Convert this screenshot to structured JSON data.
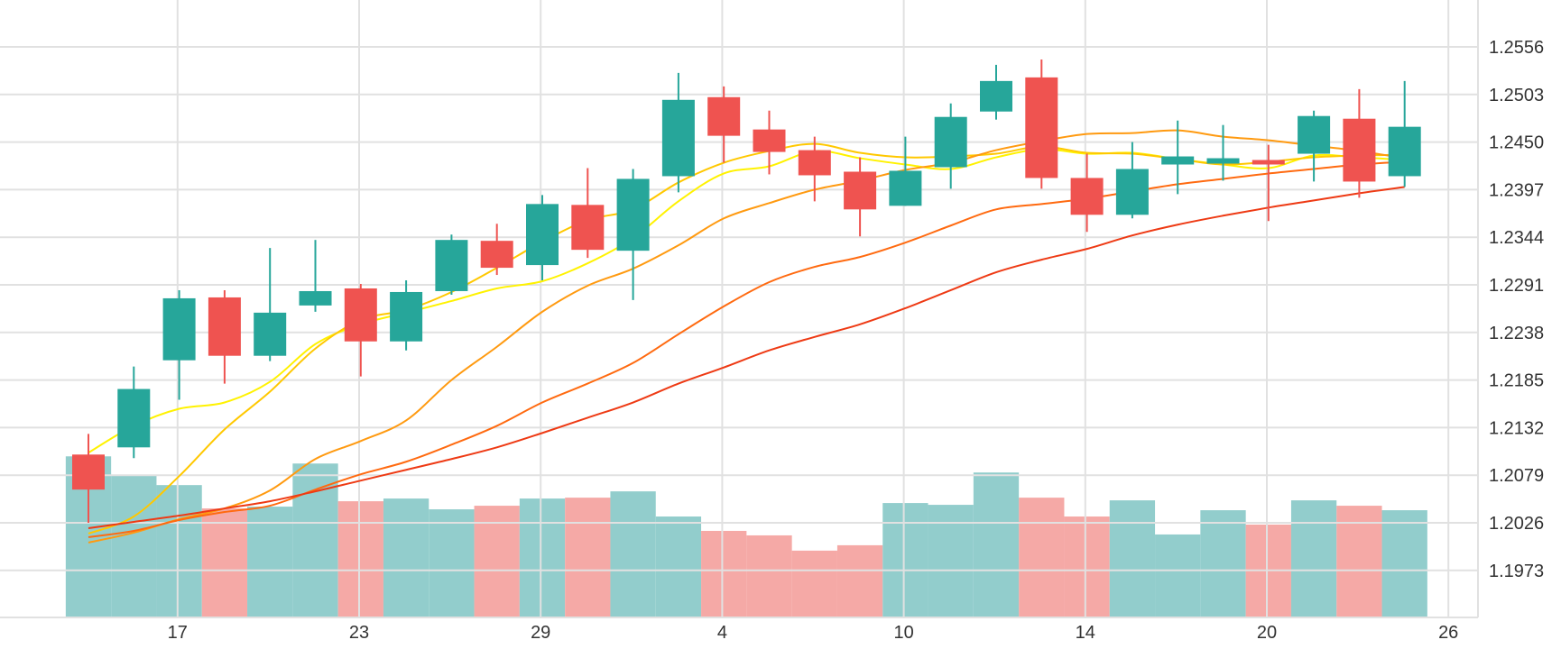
{
  "chart_data": {
    "type": "candlestick",
    "x_tick_labels": [
      {
        "label": "17",
        "index": 1
      },
      {
        "label": "23",
        "index": 5
      },
      {
        "label": "29",
        "index": 9
      },
      {
        "label": "4",
        "index": 13
      },
      {
        "label": "10",
        "index": 17
      },
      {
        "label": "14",
        "index": 21
      },
      {
        "label": "20",
        "index": 25
      },
      {
        "label": "26",
        "index": 29
      }
    ],
    "y_ticks": [
      "1.2556",
      "1.2503",
      "1.2450",
      "1.2397",
      "1.2344",
      "1.2291",
      "1.2238",
      "1.2185",
      "1.2132",
      "1.2079",
      "1.2026",
      "1.1973"
    ],
    "ylim": [
      1.1915,
      1.26
    ],
    "grid": true,
    "colors": {
      "up": "#26a69a",
      "down": "#ef5350",
      "volume_up": "#92cdcc",
      "volume_down": "#f5a9a6",
      "grid": "#e1e1e1",
      "ma_colors": [
        "#fff200",
        "#ffc800",
        "#ff9a10",
        "#ff6a10",
        "#ee3a14"
      ]
    },
    "candles": [
      {
        "o": 1.2102,
        "h": 1.2125,
        "l": 1.2026,
        "c": 1.2063
      },
      {
        "o": 1.211,
        "h": 1.22,
        "l": 1.2098,
        "c": 1.2175
      },
      {
        "o": 1.2207,
        "h": 1.2285,
        "l": 1.2163,
        "c": 1.2276
      },
      {
        "o": 1.2277,
        "h": 1.2285,
        "l": 1.2181,
        "c": 1.2212
      },
      {
        "o": 1.2212,
        "h": 1.2332,
        "l": 1.2206,
        "c": 1.226
      },
      {
        "o": 1.2268,
        "h": 1.2341,
        "l": 1.2261,
        "c": 1.2284
      },
      {
        "o": 1.2287,
        "h": 1.2292,
        "l": 1.2189,
        "c": 1.2228
      },
      {
        "o": 1.2228,
        "h": 1.2296,
        "l": 1.2218,
        "c": 1.2283
      },
      {
        "o": 1.2284,
        "h": 1.2347,
        "l": 1.228,
        "c": 1.2341
      },
      {
        "o": 1.234,
        "h": 1.2359,
        "l": 1.2302,
        "c": 1.231
      },
      {
        "o": 1.2313,
        "h": 1.2391,
        "l": 1.2296,
        "c": 1.2381
      },
      {
        "o": 1.238,
        "h": 1.2421,
        "l": 1.2321,
        "c": 1.233
      },
      {
        "o": 1.2329,
        "h": 1.242,
        "l": 1.2274,
        "c": 1.2409
      },
      {
        "o": 1.2412,
        "h": 1.2527,
        "l": 1.2394,
        "c": 1.2497
      },
      {
        "o": 1.25,
        "h": 1.2512,
        "l": 1.2427,
        "c": 1.2457
      },
      {
        "o": 1.2464,
        "h": 1.2485,
        "l": 1.2414,
        "c": 1.2439
      },
      {
        "o": 1.2441,
        "h": 1.2456,
        "l": 1.2384,
        "c": 1.2413
      },
      {
        "o": 1.2417,
        "h": 1.2433,
        "l": 1.2345,
        "c": 1.2375
      },
      {
        "o": 1.2379,
        "h": 1.2456,
        "l": 1.2379,
        "c": 1.2418
      },
      {
        "o": 1.2422,
        "h": 1.2493,
        "l": 1.2398,
        "c": 1.2478
      },
      {
        "o": 1.2484,
        "h": 1.2536,
        "l": 1.2475,
        "c": 1.2518
      },
      {
        "o": 1.2522,
        "h": 1.2542,
        "l": 1.2398,
        "c": 1.241
      },
      {
        "o": 1.241,
        "h": 1.2437,
        "l": 1.235,
        "c": 1.2369
      },
      {
        "o": 1.2369,
        "h": 1.245,
        "l": 1.2365,
        "c": 1.242
      },
      {
        "o": 1.2425,
        "h": 1.2474,
        "l": 1.2392,
        "c": 1.2434
      },
      {
        "o": 1.2426,
        "h": 1.2469,
        "l": 1.2407,
        "c": 1.2432
      },
      {
        "o": 1.243,
        "h": 1.2447,
        "l": 1.2362,
        "c": 1.2425
      },
      {
        "o": 1.2437,
        "h": 1.2485,
        "l": 1.2406,
        "c": 1.2479
      },
      {
        "o": 1.2476,
        "h": 1.2509,
        "l": 1.2388,
        "c": 1.2406
      },
      {
        "o": 1.2412,
        "h": 1.2518,
        "l": 1.24,
        "c": 1.2467
      }
    ],
    "volumes": [
      {
        "v": 1.21,
        "dir": "up"
      },
      {
        "v": 1.2079,
        "dir": "up"
      },
      {
        "v": 1.2068,
        "dir": "up"
      },
      {
        "v": 1.2042,
        "dir": "down"
      },
      {
        "v": 1.2044,
        "dir": "up"
      },
      {
        "v": 1.2092,
        "dir": "up"
      },
      {
        "v": 1.205,
        "dir": "down"
      },
      {
        "v": 1.2053,
        "dir": "up"
      },
      {
        "v": 1.2041,
        "dir": "up"
      },
      {
        "v": 1.2045,
        "dir": "down"
      },
      {
        "v": 1.2053,
        "dir": "up"
      },
      {
        "v": 1.2054,
        "dir": "down"
      },
      {
        "v": 1.2061,
        "dir": "up"
      },
      {
        "v": 1.2033,
        "dir": "up"
      },
      {
        "v": 1.2017,
        "dir": "down"
      },
      {
        "v": 1.2012,
        "dir": "down"
      },
      {
        "v": 1.1995,
        "dir": "down"
      },
      {
        "v": 1.2001,
        "dir": "down"
      },
      {
        "v": 1.2048,
        "dir": "up"
      },
      {
        "v": 1.2046,
        "dir": "up"
      },
      {
        "v": 1.2082,
        "dir": "up"
      },
      {
        "v": 1.2054,
        "dir": "down"
      },
      {
        "v": 1.2033,
        "dir": "down"
      },
      {
        "v": 1.2051,
        "dir": "up"
      },
      {
        "v": 1.2013,
        "dir": "up"
      },
      {
        "v": 1.204,
        "dir": "up"
      },
      {
        "v": 1.2024,
        "dir": "down"
      },
      {
        "v": 1.2051,
        "dir": "up"
      },
      {
        "v": 1.2045,
        "dir": "down"
      },
      {
        "v": 1.204,
        "dir": "up"
      }
    ],
    "moving_averages": [
      {
        "values": [
          1.2104,
          1.2134,
          1.2153,
          1.216,
          1.2183,
          1.2225,
          1.2247,
          1.226,
          1.2273,
          1.2287,
          1.2295,
          1.2315,
          1.2343,
          1.2384,
          1.2415,
          1.2423,
          1.244,
          1.2432,
          1.2425,
          1.242,
          1.2433,
          1.2442,
          1.2437,
          1.2438,
          1.2431,
          1.2425,
          1.2421,
          1.2435,
          1.2433,
          1.243
        ]
      },
      {
        "values": [
          1.2014,
          1.2033,
          1.2078,
          1.213,
          1.2172,
          1.222,
          1.2252,
          1.2263,
          1.2283,
          1.231,
          1.2339,
          1.2363,
          1.2375,
          1.2405,
          1.2427,
          1.244,
          1.2448,
          1.2438,
          1.2433,
          1.2434,
          1.2437,
          1.2445,
          1.2438,
          1.2437,
          1.2431,
          1.2425,
          1.2428,
          1.2433,
          1.2435,
          1.2436
        ]
      },
      {
        "values": [
          1.2004,
          1.2015,
          1.203,
          1.2042,
          1.2062,
          1.2097,
          1.2117,
          1.214,
          1.2185,
          1.2222,
          1.2261,
          1.229,
          1.2309,
          1.2335,
          1.2365,
          1.2382,
          1.2397,
          1.2407,
          1.2419,
          1.2427,
          1.2441,
          1.2451,
          1.2459,
          1.246,
          1.2463,
          1.2456,
          1.2452,
          1.2446,
          1.244,
          1.2432
        ]
      },
      {
        "values": [
          1.201,
          1.2017,
          1.2029,
          1.2038,
          1.2045,
          1.2063,
          1.208,
          1.2094,
          1.2113,
          1.2134,
          1.216,
          1.2181,
          1.2204,
          1.2236,
          1.2267,
          1.2294,
          1.2311,
          1.2322,
          1.2338,
          1.2357,
          1.2375,
          1.2381,
          1.2387,
          1.2395,
          1.2403,
          1.2409,
          1.2415,
          1.242,
          1.2425,
          1.2428
        ]
      },
      {
        "values": [
          1.202,
          1.2027,
          1.2034,
          1.2042,
          1.205,
          1.2061,
          1.2073,
          1.2085,
          1.2097,
          1.211,
          1.2126,
          1.2143,
          1.216,
          1.2181,
          1.2199,
          1.2218,
          1.2233,
          1.2247,
          1.2265,
          1.2285,
          1.2305,
          1.2319,
          1.2331,
          1.2346,
          1.2358,
          1.2368,
          1.2377,
          1.2385,
          1.2393,
          1.24
        ]
      }
    ]
  }
}
